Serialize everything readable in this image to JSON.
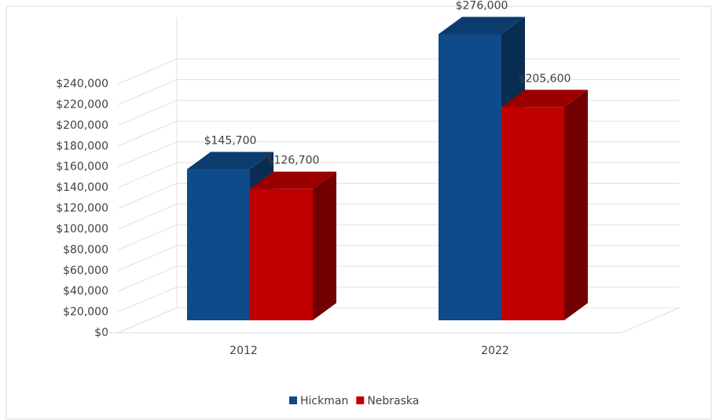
{
  "chart_data": {
    "type": "bar",
    "categories": [
      "2012",
      "2022"
    ],
    "series": [
      {
        "name": "Hickman",
        "color": "#0f4a8a",
        "values": [
          145700,
          276000
        ],
        "value_labels": [
          "$145,700",
          "$276,000"
        ]
      },
      {
        "name": "Nebraska",
        "color": "#c00000",
        "values": [
          126700,
          205600
        ],
        "value_labels": [
          "$126,700",
          "$205,600"
        ]
      }
    ],
    "ylim": [
      0,
      280000
    ],
    "yticks": [
      {
        "value": 0,
        "label": "$0"
      },
      {
        "value": 20000,
        "label": "$20,000"
      },
      {
        "value": 40000,
        "label": "$40,000"
      },
      {
        "value": 60000,
        "label": "$60,000"
      },
      {
        "value": 80000,
        "label": "$80,000"
      },
      {
        "value": 100000,
        "label": "$100,000"
      },
      {
        "value": 120000,
        "label": "$120,000"
      },
      {
        "value": 140000,
        "label": "$140,000"
      },
      {
        "value": 160000,
        "label": "$160,000"
      },
      {
        "value": 180000,
        "label": "$180,000"
      },
      {
        "value": 200000,
        "label": "$200,000"
      },
      {
        "value": 220000,
        "label": "$220,000"
      },
      {
        "value": 240000,
        "label": "$240,000"
      }
    ],
    "grid": true,
    "legend": "bottom"
  }
}
